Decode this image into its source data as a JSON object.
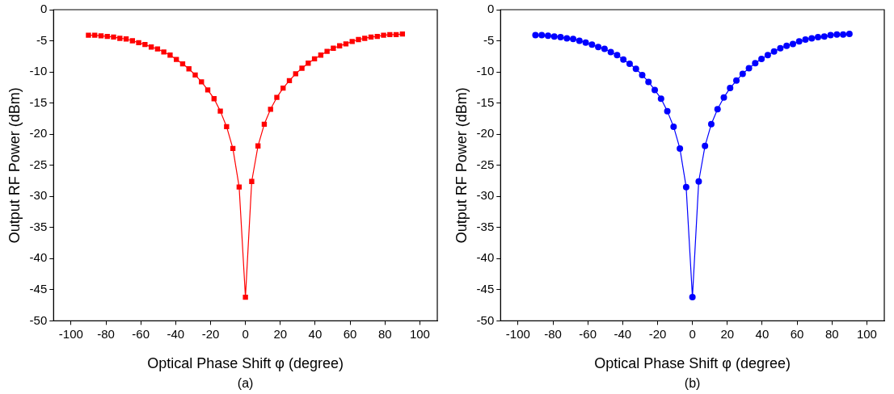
{
  "chart_data": [
    {
      "type": "line",
      "xlabel": "Optical Phase Shift φ (degree)",
      "ylabel": "Output RF Power (dBm)",
      "annotations": [
        "(a)"
      ],
      "marker": "square",
      "line_style": "solid",
      "grid": false,
      "legend": false,
      "x": [
        -90,
        -86.4,
        -82.8,
        -79.2,
        -75.6,
        -72,
        -68.4,
        -64.8,
        -61.2,
        -57.6,
        -54,
        -50.4,
        -46.8,
        -43.2,
        -39.6,
        -36,
        -32.4,
        -28.8,
        -25.2,
        -21.6,
        -18,
        -14.4,
        -10.8,
        -7.2,
        -3.6,
        0,
        3.6,
        7.2,
        10.8,
        14.4,
        18,
        21.6,
        25.2,
        28.8,
        32.4,
        36,
        39.6,
        43.2,
        46.8,
        50.4,
        54,
        57.6,
        61.2,
        64.8,
        68.4,
        72,
        75.6,
        79.2,
        82.8,
        86.4,
        90
      ],
      "series": [
        {
          "color": "#ff0000",
          "values": [
            -4.1,
            -4.1,
            -4.2,
            -4.3,
            -4.4,
            -4.6,
            -4.7,
            -5.0,
            -5.3,
            -5.6,
            -6.0,
            -6.3,
            -6.8,
            -7.3,
            -8.0,
            -8.7,
            -9.5,
            -10.5,
            -11.6,
            -12.9,
            -14.3,
            -16.3,
            -18.8,
            -22.3,
            -28.5,
            -46.2,
            -27.6,
            -21.9,
            -18.4,
            -16.0,
            -14.1,
            -12.6,
            -11.4,
            -10.3,
            -9.4,
            -8.6,
            -7.9,
            -7.3,
            -6.7,
            -6.2,
            -5.8,
            -5.5,
            -5.1,
            -4.8,
            -4.6,
            -4.4,
            -4.3,
            -4.1,
            -4.0,
            -4.0,
            -3.9
          ]
        }
      ],
      "xlim": [
        -110,
        110
      ],
      "xticks": [
        -100,
        -80,
        -60,
        -40,
        -20,
        0,
        20,
        40,
        60,
        80,
        100
      ],
      "ylim": [
        -50,
        0
      ],
      "yticks": [
        -50,
        -45,
        -40,
        -35,
        -30,
        -25,
        -20,
        -15,
        -10,
        -5,
        0
      ]
    },
    {
      "type": "line",
      "xlabel": "Optical Phase Shift φ (degree)",
      "ylabel": "Output RF Power (dBm)",
      "annotations": [
        "(b)"
      ],
      "marker": "circle",
      "line_style": "solid",
      "grid": false,
      "legend": false,
      "x": [
        -90,
        -86.4,
        -82.8,
        -79.2,
        -75.6,
        -72,
        -68.4,
        -64.8,
        -61.2,
        -57.6,
        -54,
        -50.4,
        -46.8,
        -43.2,
        -39.6,
        -36,
        -32.4,
        -28.8,
        -25.2,
        -21.6,
        -18,
        -14.4,
        -10.8,
        -7.2,
        -3.6,
        0,
        3.6,
        7.2,
        10.8,
        14.4,
        18,
        21.6,
        25.2,
        28.8,
        32.4,
        36,
        39.6,
        43.2,
        46.8,
        50.4,
        54,
        57.6,
        61.2,
        64.8,
        68.4,
        72,
        75.6,
        79.2,
        82.8,
        86.4,
        90
      ],
      "series": [
        {
          "color": "#0000ff",
          "values": [
            -4.1,
            -4.1,
            -4.2,
            -4.3,
            -4.4,
            -4.6,
            -4.7,
            -5.0,
            -5.3,
            -5.6,
            -6.0,
            -6.3,
            -6.8,
            -7.3,
            -8.0,
            -8.7,
            -9.5,
            -10.5,
            -11.6,
            -12.9,
            -14.3,
            -16.3,
            -18.8,
            -22.3,
            -28.5,
            -46.2,
            -27.6,
            -21.9,
            -18.4,
            -16.0,
            -14.1,
            -12.6,
            -11.4,
            -10.3,
            -9.4,
            -8.6,
            -7.9,
            -7.3,
            -6.7,
            -6.2,
            -5.8,
            -5.5,
            -5.1,
            -4.8,
            -4.6,
            -4.4,
            -4.3,
            -4.1,
            -4.0,
            -4.0,
            -3.9
          ]
        }
      ],
      "xlim": [
        -110,
        110
      ],
      "xticks": [
        -100,
        -80,
        -60,
        -40,
        -20,
        0,
        20,
        40,
        60,
        80,
        100
      ],
      "ylim": [
        -50,
        0
      ],
      "yticks": [
        -50,
        -45,
        -40,
        -35,
        -30,
        -25,
        -20,
        -15,
        -10,
        -5,
        0
      ]
    }
  ]
}
